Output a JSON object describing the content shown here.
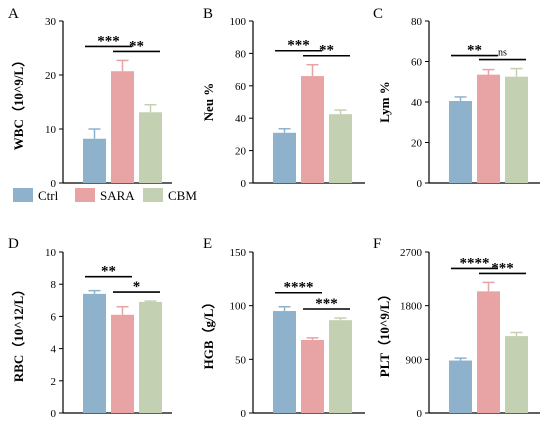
{
  "colors": {
    "Ctrl": "#8fb2cc",
    "SARA": "#e8a3a4",
    "CBM": "#c3d0b2",
    "axis": "#000000"
  },
  "legend": {
    "items": [
      "Ctrl",
      "SARA",
      "CBM"
    ]
  },
  "chart_data": [
    {
      "type": "bar",
      "letter": "A",
      "ylabel": "WBC（10^9/L）",
      "categories": [
        "Ctrl",
        "SARA",
        "CBM"
      ],
      "values": [
        8.2,
        20.7,
        13.1
      ],
      "errors": [
        1.8,
        2.0,
        1.4
      ],
      "ylim": [
        0,
        30
      ],
      "yticks": [
        "0",
        "10",
        "20",
        "30"
      ],
      "grid": false,
      "annotations": [
        {
          "from": 0,
          "to": 1,
          "text": "***"
        },
        {
          "from": 1,
          "to": 2,
          "text": "**"
        }
      ]
    },
    {
      "type": "bar",
      "letter": "B",
      "ylabel": "Neu %",
      "categories": [
        "Ctrl",
        "SARA",
        "CBM"
      ],
      "values": [
        31,
        66,
        42.5
      ],
      "errors": [
        2.5,
        7,
        2.5
      ],
      "ylim": [
        0,
        100
      ],
      "yticks": [
        "0",
        "20",
        "40",
        "60",
        "80",
        "100"
      ],
      "grid": false,
      "annotations": [
        {
          "from": 0,
          "to": 1,
          "text": "***"
        },
        {
          "from": 1,
          "to": 2,
          "text": "**"
        }
      ]
    },
    {
      "type": "bar",
      "letter": "C",
      "ylabel": "Lym %",
      "categories": [
        "Ctrl",
        "SARA",
        "CBM"
      ],
      "values": [
        40.5,
        53.5,
        52.5
      ],
      "errors": [
        2,
        2.5,
        4
      ],
      "ylim": [
        0,
        80
      ],
      "yticks": [
        "0",
        "20",
        "40",
        "60",
        "80"
      ],
      "grid": false,
      "annotations": [
        {
          "from": 0,
          "to": 1,
          "text": "**"
        },
        {
          "from": 1,
          "to": 2,
          "text": "ns"
        }
      ]
    },
    {
      "type": "bar",
      "letter": "D",
      "ylabel": "RBC（10^12/L）",
      "categories": [
        "Ctrl",
        "SARA",
        "CBM"
      ],
      "values": [
        7.4,
        6.1,
        6.9
      ],
      "errors": [
        0.2,
        0.5,
        0.05
      ],
      "ylim": [
        0,
        10
      ],
      "yticks": [
        "0",
        "2",
        "4",
        "6",
        "8",
        "10"
      ],
      "grid": false,
      "annotations": [
        {
          "from": 0,
          "to": 1,
          "text": "**"
        },
        {
          "from": 1,
          "to": 2,
          "text": "*"
        }
      ]
    },
    {
      "type": "bar",
      "letter": "E",
      "ylabel": "HGB（g/L）",
      "categories": [
        "Ctrl",
        "SARA",
        "CBM"
      ],
      "values": [
        95,
        68,
        86.5
      ],
      "errors": [
        4,
        2,
        2
      ],
      "ylim": [
        0,
        150
      ],
      "yticks": [
        "0",
        "50",
        "100",
        "150"
      ],
      "grid": false,
      "annotations": [
        {
          "from": 0,
          "to": 1,
          "text": "****"
        },
        {
          "from": 1,
          "to": 2,
          "text": "***"
        }
      ]
    },
    {
      "type": "bar",
      "letter": "F",
      "ylabel": "PLT（10^9/L）",
      "categories": [
        "Ctrl",
        "SARA",
        "CBM"
      ],
      "values": [
        880,
        2040,
        1290
      ],
      "errors": [
        40,
        150,
        60
      ],
      "ylim": [
        0,
        2700
      ],
      "yticks": [
        "0",
        "900",
        "1800",
        "2700"
      ],
      "grid": false,
      "annotations": [
        {
          "from": 0,
          "to": 1,
          "text": "****"
        },
        {
          "from": 1,
          "to": 2,
          "text": "***"
        }
      ]
    }
  ]
}
